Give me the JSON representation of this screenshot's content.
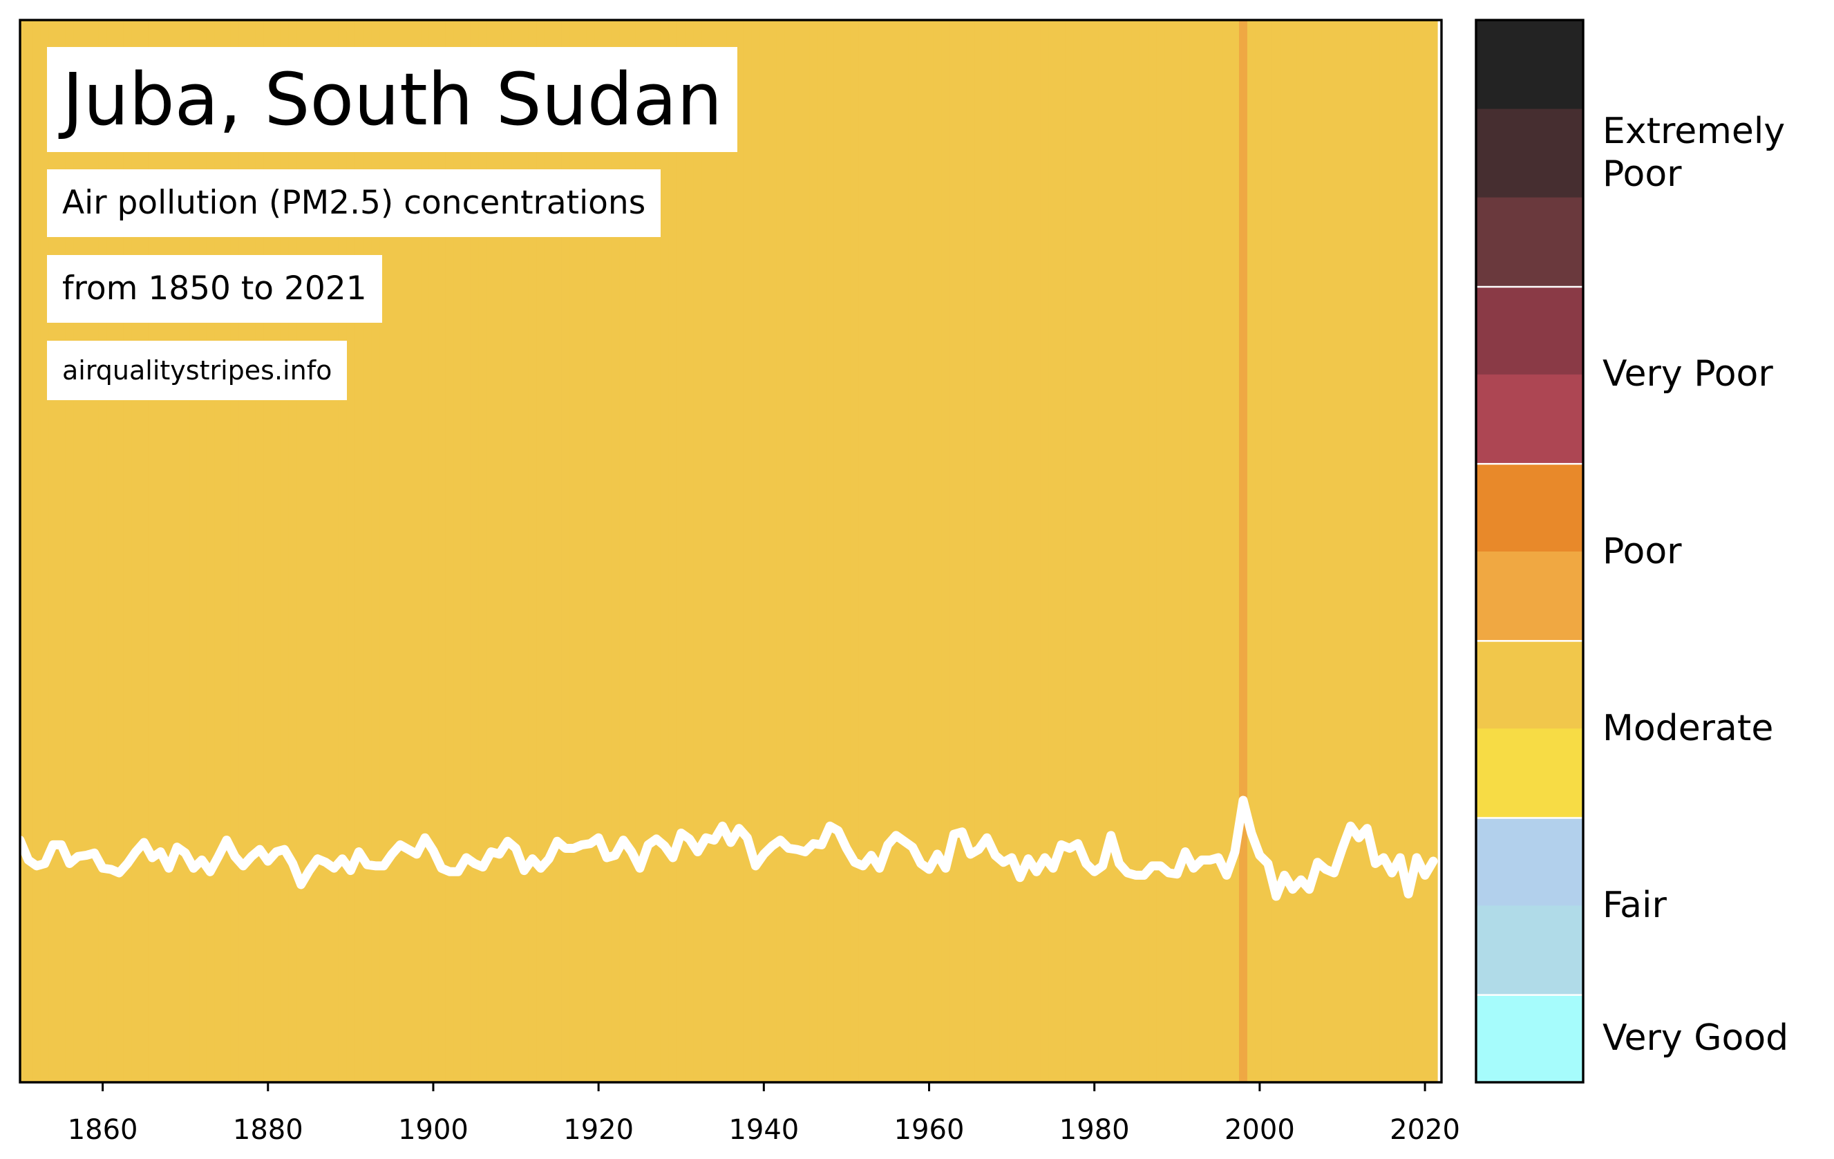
{
  "chart_data": {
    "type": "stripes",
    "title": "Juba, South Sudan",
    "subtitle": "Air pollution (PM2.5) concentrations",
    "period": "from 1850 to 2021",
    "source": "airqualitystripes.info",
    "xlim": [
      1850,
      2022
    ],
    "xticks": [
      1860,
      1880,
      1900,
      1920,
      1940,
      1960,
      1980,
      2000,
      2020
    ],
    "ylim": [
      0,
      90.8
    ],
    "line_color": "#ffffff",
    "x": [
      1850,
      1851,
      1852,
      1853,
      1854,
      1855,
      1856,
      1857,
      1858,
      1859,
      1860,
      1861,
      1862,
      1863,
      1864,
      1865,
      1866,
      1867,
      1868,
      1869,
      1870,
      1871,
      1872,
      1873,
      1874,
      1875,
      1876,
      1877,
      1878,
      1879,
      1880,
      1881,
      1882,
      1883,
      1884,
      1885,
      1886,
      1887,
      1888,
      1889,
      1890,
      1891,
      1892,
      1893,
      1894,
      1895,
      1896,
      1897,
      1898,
      1899,
      1900,
      1901,
      1902,
      1903,
      1904,
      1905,
      1906,
      1907,
      1908,
      1909,
      1910,
      1911,
      1912,
      1913,
      1914,
      1915,
      1916,
      1917,
      1918,
      1919,
      1920,
      1921,
      1922,
      1923,
      1924,
      1925,
      1926,
      1927,
      1928,
      1929,
      1930,
      1931,
      1932,
      1933,
      1934,
      1935,
      1936,
      1937,
      1938,
      1939,
      1940,
      1941,
      1942,
      1943,
      1944,
      1945,
      1946,
      1947,
      1948,
      1949,
      1950,
      1951,
      1952,
      1953,
      1954,
      1955,
      1956,
      1957,
      1958,
      1959,
      1960,
      1961,
      1962,
      1963,
      1964,
      1965,
      1966,
      1967,
      1968,
      1969,
      1970,
      1971,
      1972,
      1973,
      1974,
      1975,
      1976,
      1977,
      1978,
      1979,
      1980,
      1981,
      1982,
      1983,
      1984,
      1985,
      1986,
      1987,
      1988,
      1989,
      1990,
      1991,
      1992,
      1993,
      1994,
      1995,
      1996,
      1997,
      1998,
      1999,
      2000,
      2001,
      2002,
      2003,
      2004,
      2005,
      2006,
      2007,
      2008,
      2009,
      2010,
      2011,
      2012,
      2013,
      2014,
      2015,
      2016,
      2017,
      2018,
      2019,
      2020,
      2021
    ],
    "values": [
      20.7,
      19.0,
      18.5,
      18.7,
      20.3,
      20.3,
      18.7,
      19.3,
      19.4,
      19.6,
      18.3,
      18.2,
      17.9,
      18.7,
      19.7,
      20.5,
      19.2,
      19.7,
      18.3,
      20.1,
      19.6,
      18.3,
      19.0,
      18.0,
      19.3,
      20.7,
      19.3,
      18.5,
      19.3,
      19.9,
      18.9,
      19.7,
      19.9,
      18.7,
      16.9,
      18.1,
      19.1,
      18.8,
      18.3,
      19.1,
      18.1,
      19.7,
      18.6,
      18.5,
      18.5,
      19.5,
      20.3,
      19.9,
      19.5,
      20.9,
      19.8,
      18.3,
      18.0,
      18.0,
      19.2,
      18.7,
      18.4,
      19.7,
      19.5,
      20.6,
      20.0,
      18.1,
      19.1,
      18.3,
      19.1,
      20.6,
      20.0,
      20.0,
      20.3,
      20.4,
      20.9,
      19.2,
      19.4,
      20.7,
      19.7,
      18.3,
      20.3,
      20.8,
      20.2,
      19.2,
      21.3,
      20.8,
      19.7,
      20.9,
      20.7,
      21.9,
      20.5,
      21.7,
      20.9,
      18.5,
      19.5,
      20.2,
      20.7,
      20.0,
      19.9,
      19.7,
      20.4,
      20.3,
      21.9,
      21.5,
      20.0,
      18.8,
      18.5,
      19.4,
      18.3,
      20.3,
      21.1,
      20.6,
      20.1,
      18.7,
      18.2,
      19.5,
      18.3,
      21.2,
      21.4,
      19.5,
      19.9,
      20.9,
      19.4,
      18.8,
      19.2,
      17.5,
      19.1,
      18.0,
      19.2,
      18.3,
      20.3,
      20.0,
      20.4,
      18.7,
      18.0,
      18.5,
      21.1,
      18.7,
      17.9,
      17.7,
      17.7,
      18.5,
      18.5,
      17.9,
      17.8,
      19.7,
      18.3,
      19.0,
      19.0,
      19.2,
      17.7,
      19.7,
      24.1,
      21.3,
      19.4,
      18.7,
      15.9,
      17.7,
      16.5,
      17.3,
      16.5,
      18.8,
      18.2,
      17.9,
      20.0,
      21.9,
      20.9,
      21.7,
      18.7,
      19.2,
      17.9,
      19.2,
      16.1,
      19.2,
      17.7,
      18.9
    ],
    "stripe_colors": [
      "#f1c74b",
      "#f1c74b",
      "#f1c74b",
      "#f1c74b",
      "#f1c74b",
      "#f1c74b",
      "#f1c74b",
      "#f1c74b",
      "#f1c74b",
      "#f1c74b",
      "#f1c74b",
      "#f1c74b",
      "#f1c74b",
      "#f1c74b",
      "#f1c74b",
      "#f1c74b",
      "#f1c74b",
      "#f1c74b",
      "#f1c74b",
      "#f1c74b",
      "#f1c74b",
      "#f1c74b",
      "#f1c74b",
      "#f1c74b",
      "#f1c74b",
      "#f1c74b",
      "#f1c74b",
      "#f1c74b",
      "#f1c74b",
      "#f1c74b",
      "#f1c74b",
      "#f1c74b",
      "#f1c74b",
      "#f1c74b",
      "#f1c74b",
      "#f1c74b",
      "#f1c74b",
      "#f1c74b",
      "#f1c74b",
      "#f1c74b",
      "#f1c74b",
      "#f1c74b",
      "#f1c74b",
      "#f1c74b",
      "#f1c74b",
      "#f1c74b",
      "#f1c74b",
      "#f1c74b",
      "#f1c74b",
      "#f1c74b",
      "#f1c74b",
      "#f1c74b",
      "#f1c74b",
      "#f1c74b",
      "#f1c74b",
      "#f1c74b",
      "#f1c74b",
      "#f1c74b",
      "#f1c74b",
      "#f1c74b",
      "#f1c74b",
      "#f1c74b",
      "#f1c74b",
      "#f1c74b",
      "#f1c74b",
      "#f1c74b",
      "#f1c74b",
      "#f1c74b",
      "#f1c74b",
      "#f1c74b",
      "#f1c74b",
      "#f1c74b",
      "#f1c74b",
      "#f1c74b",
      "#f1c74b",
      "#f1c74b",
      "#f1c74b",
      "#f1c74b",
      "#f1c74b",
      "#f1c74b",
      "#f1c74b",
      "#f1c74b",
      "#f1c74b",
      "#f1c74b",
      "#f1c74b",
      "#f1c74b",
      "#f1c74b",
      "#f1c74b",
      "#f1c74b",
      "#f1c74b",
      "#f1c74b",
      "#f1c74b",
      "#f1c74b",
      "#f1c74b",
      "#f1c74b",
      "#f1c74b",
      "#f1c74b",
      "#f1c74b",
      "#f1c74b",
      "#f1c74b",
      "#f1c74b",
      "#f1c74b",
      "#f1c74b",
      "#f1c74b",
      "#f1c74b",
      "#f1c74b",
      "#f1c74b",
      "#f1c74b",
      "#f1c74b",
      "#f1c74b",
      "#f1c74b",
      "#f1c74b",
      "#f1c74b",
      "#f1c74b",
      "#f1c74b",
      "#f1c74b",
      "#f1c74b",
      "#f1c74b",
      "#f1c74b",
      "#f1c74b",
      "#f1c74b",
      "#f1c74b",
      "#f1c74b",
      "#f1c74b",
      "#f1c74b",
      "#f1c74b",
      "#f1c74b",
      "#f1c74b",
      "#f1c74b",
      "#f1c74b",
      "#f1c74b",
      "#f1c74b",
      "#f1c74b",
      "#f1c74b",
      "#f1c74b",
      "#f1c74b",
      "#f1c74b",
      "#f1c74b",
      "#f1c74b",
      "#f1c74b",
      "#f1c74b",
      "#f1c74b",
      "#f1c74b",
      "#f1c74b",
      "#f1c74b",
      "#f1c74b",
      "#f1c74b",
      "#f1c74b",
      "#efa843",
      "#f1c74b",
      "#f1c74b",
      "#f1c74b",
      "#f1c74b",
      "#f1c74b",
      "#f1c74b",
      "#f1c74b",
      "#f1c74b",
      "#f1c74b",
      "#f1c74b",
      "#f1c74b",
      "#f1c74b",
      "#f1c74b",
      "#f1c74b",
      "#f1c74b",
      "#f1c74b",
      "#f1c74b",
      "#f1c74b",
      "#f1c74b",
      "#f1c74b",
      "#f1c74b",
      "#f1c74b",
      "#f1c74b"
    ],
    "colorbar": [
      {
        "label": "Very Good",
        "colors": [
          "#a6fcfc"
        ]
      },
      {
        "label": "Fair",
        "colors": [
          "#b0dbe8",
          "#b2d0ec"
        ]
      },
      {
        "label": "Moderate",
        "colors": [
          "#f7dc45",
          "#f1c74b"
        ]
      },
      {
        "label": "Poor",
        "colors": [
          "#f0a842",
          "#e8892a"
        ]
      },
      {
        "label": "Very Poor",
        "colors": [
          "#ad4653",
          "#8a3a46"
        ]
      },
      {
        "label": "Extremely Poor",
        "colors": [
          "#6a393d",
          "#462e30",
          "#232323"
        ]
      }
    ]
  }
}
